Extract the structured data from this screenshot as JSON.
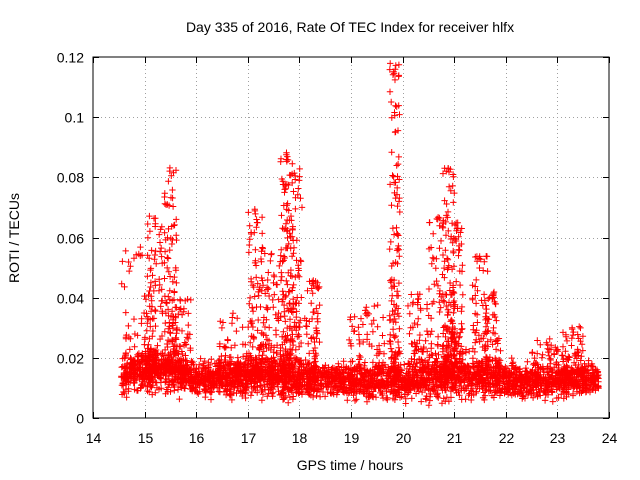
{
  "chart_data": {
    "type": "scatter",
    "title": "Day 335 of 2016, Rate Of TEC Index for receiver hlfx",
    "xlabel": "GPS time / hours",
    "ylabel": "ROTI / TECUs",
    "xlim": [
      14,
      24
    ],
    "ylim": [
      0,
      0.12
    ],
    "xticks": [
      14,
      15,
      16,
      17,
      18,
      19,
      20,
      21,
      22,
      23,
      24
    ],
    "yticks": [
      0,
      0.02,
      0.04,
      0.06,
      0.08,
      0.1,
      0.12
    ],
    "ytick_labels": [
      "0",
      "0.02",
      "0.04",
      "0.06",
      "0.08",
      "0.1",
      "0.12"
    ],
    "grid": true,
    "marker": "+",
    "color": "#ff0000",
    "x_range_of_data": [
      14.55,
      23.8
    ],
    "baseline": {
      "comment_free_fields": true,
      "x": [
        14.55,
        15.0,
        15.5,
        16.0,
        16.5,
        17.0,
        17.5,
        18.0,
        18.5,
        19.0,
        19.5,
        20.0,
        20.5,
        21.0,
        21.5,
        22.0,
        22.5,
        23.0,
        23.5,
        23.8
      ],
      "median": [
        0.014,
        0.016,
        0.016,
        0.013,
        0.013,
        0.014,
        0.014,
        0.013,
        0.013,
        0.012,
        0.012,
        0.012,
        0.013,
        0.014,
        0.013,
        0.013,
        0.012,
        0.012,
        0.013,
        0.013
      ],
      "spread": [
        0.008,
        0.01,
        0.009,
        0.007,
        0.007,
        0.008,
        0.009,
        0.008,
        0.007,
        0.007,
        0.007,
        0.007,
        0.009,
        0.009,
        0.008,
        0.007,
        0.007,
        0.007,
        0.007,
        0.007
      ]
    },
    "bursts": [
      {
        "center": 14.9,
        "width": 0.35,
        "peak": 0.057
      },
      {
        "center": 15.2,
        "width": 0.15,
        "peak": 0.068
      },
      {
        "center": 15.5,
        "width": 0.12,
        "peak": 0.084
      },
      {
        "center": 15.7,
        "width": 0.2,
        "peak": 0.04
      },
      {
        "center": 16.7,
        "width": 0.3,
        "peak": 0.035
      },
      {
        "center": 17.15,
        "width": 0.15,
        "peak": 0.071
      },
      {
        "center": 17.45,
        "width": 0.2,
        "peak": 0.055
      },
      {
        "center": 17.75,
        "width": 0.12,
        "peak": 0.089
      },
      {
        "center": 17.9,
        "width": 0.15,
        "peak": 0.083
      },
      {
        "center": 18.25,
        "width": 0.15,
        "peak": 0.046
      },
      {
        "center": 19.3,
        "width": 0.35,
        "peak": 0.038
      },
      {
        "center": 19.85,
        "width": 0.1,
        "peak": 0.118
      },
      {
        "center": 20.3,
        "width": 0.2,
        "peak": 0.042
      },
      {
        "center": 20.7,
        "width": 0.2,
        "peak": 0.067
      },
      {
        "center": 20.9,
        "width": 0.12,
        "peak": 0.084
      },
      {
        "center": 21.05,
        "width": 0.12,
        "peak": 0.065
      },
      {
        "center": 21.5,
        "width": 0.15,
        "peak": 0.056
      },
      {
        "center": 21.75,
        "width": 0.15,
        "peak": 0.042
      },
      {
        "center": 22.8,
        "width": 0.3,
        "peak": 0.027
      },
      {
        "center": 23.3,
        "width": 0.2,
        "peak": 0.031
      }
    ],
    "point_count": 3200
  }
}
